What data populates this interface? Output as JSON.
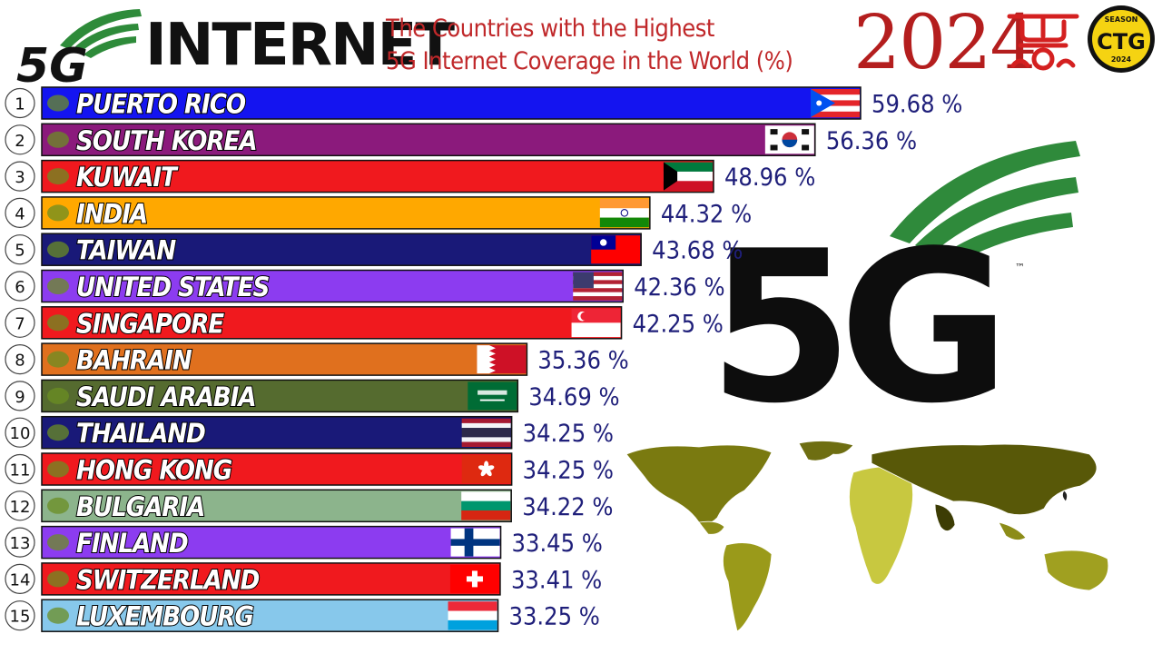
{
  "header": {
    "logo_text": "5G",
    "title": "INTERNET",
    "subtitle_line1": "The Countries with the Highest",
    "subtitle_line2": "5G Internet Coverage in the World (%)",
    "year": "2024",
    "badge_top": "SEASON",
    "badge_main": "CTG",
    "badge_bottom": "2024"
  },
  "illustration": {
    "big_logo_text": "5G",
    "trademark": "™"
  },
  "colors": {
    "accent_red": "#c0282a",
    "logo_green": "#2e8b3a",
    "value_text": "#1f1f7a"
  },
  "chart_data": {
    "type": "bar",
    "orientation": "horizontal",
    "unit": "%",
    "xlim": [
      0,
      60
    ],
    "grid": false,
    "legend": "none",
    "rows": [
      {
        "rank": "1",
        "name": "PUERTO RICO",
        "value": 59.68,
        "label": "59.68 %",
        "color": "#1414f0",
        "flag": "puerto-rico"
      },
      {
        "rank": "2",
        "name": "SOUTH KOREA",
        "value": 56.36,
        "label": "56.36 %",
        "color": "#8b1a7c",
        "flag": "south-korea"
      },
      {
        "rank": "3",
        "name": "KUWAIT",
        "value": 48.96,
        "label": "48.96 %",
        "color": "#f0191e",
        "flag": "kuwait"
      },
      {
        "rank": "4",
        "name": "INDIA",
        "value": 44.32,
        "label": "44.32 %",
        "color": "#ffa800",
        "flag": "india"
      },
      {
        "rank": "5",
        "name": "TAIWAN",
        "value": 43.68,
        "label": "43.68 %",
        "color": "#191978",
        "flag": "taiwan"
      },
      {
        "rank": "6",
        "name": "UNITED STATES",
        "value": 42.36,
        "label": "42.36 %",
        "color": "#8c3cf0",
        "flag": "united-states"
      },
      {
        "rank": "7",
        "name": "SINGAPORE",
        "value": 42.25,
        "label": "42.25 %",
        "color": "#f0191e",
        "flag": "singapore"
      },
      {
        "rank": "8",
        "name": "BAHRAIN",
        "value": 35.36,
        "label": "35.36 %",
        "color": "#e0701e",
        "flag": "bahrain"
      },
      {
        "rank": "9",
        "name": "SAUDI ARABIA",
        "value": 34.69,
        "label": "34.69 %",
        "color": "#556b2f",
        "flag": "saudi-arabia"
      },
      {
        "rank": "10",
        "name": "THAILAND",
        "value": 34.25,
        "label": "34.25 %",
        "color": "#191978",
        "flag": "thailand"
      },
      {
        "rank": "11",
        "name": "HONG KONG",
        "value": 34.25,
        "label": "34.25 %",
        "color": "#f0191e",
        "flag": "hong-kong"
      },
      {
        "rank": "12",
        "name": "BULGARIA",
        "value": 34.22,
        "label": "34.22 %",
        "color": "#8cb48c",
        "flag": "bulgaria"
      },
      {
        "rank": "13",
        "name": "FINLAND",
        "value": 33.45,
        "label": "33.45 %",
        "color": "#8c3cf0",
        "flag": "finland"
      },
      {
        "rank": "14",
        "name": "SWITZERLAND",
        "value": 33.41,
        "label": "33.41 %",
        "color": "#f0191e",
        "flag": "switzerland"
      },
      {
        "rank": "15",
        "name": "LUXEMBOURG",
        "value": 33.25,
        "label": "33.25 %",
        "color": "#87c8eb",
        "flag": "luxembourg"
      }
    ]
  }
}
